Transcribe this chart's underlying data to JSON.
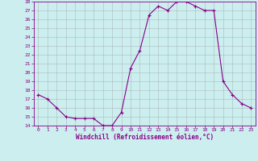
{
  "x": [
    0,
    1,
    2,
    3,
    4,
    5,
    6,
    7,
    8,
    9,
    10,
    11,
    12,
    13,
    14,
    15,
    16,
    17,
    18,
    19,
    20,
    21,
    22,
    23
  ],
  "y": [
    17.5,
    17.0,
    16.0,
    15.0,
    14.8,
    14.8,
    14.8,
    14.0,
    14.0,
    15.5,
    20.5,
    22.5,
    26.5,
    27.5,
    27.0,
    28.0,
    28.0,
    27.5,
    27.0,
    27.0,
    19.0,
    17.5,
    16.5,
    16.0
  ],
  "xlabel": "Windchill (Refroidissement éolien,°C)",
  "ylim": [
    14,
    28
  ],
  "xlim": [
    -0.5,
    23.5
  ],
  "yticks": [
    14,
    15,
    16,
    17,
    18,
    19,
    20,
    21,
    22,
    23,
    24,
    25,
    26,
    27,
    28
  ],
  "xticks": [
    0,
    1,
    2,
    3,
    4,
    5,
    6,
    7,
    8,
    9,
    10,
    11,
    12,
    13,
    14,
    15,
    16,
    17,
    18,
    19,
    20,
    21,
    22,
    23
  ],
  "line_color": "#880088",
  "marker": "+",
  "markersize": 3,
  "linewidth": 0.8,
  "bg_color": "#cceeee",
  "grid_color": "#aabbbb",
  "tick_color": "#880088",
  "label_color": "#880088",
  "font_family": "monospace",
  "tick_fontsize": 4.5,
  "xlabel_fontsize": 5.5
}
